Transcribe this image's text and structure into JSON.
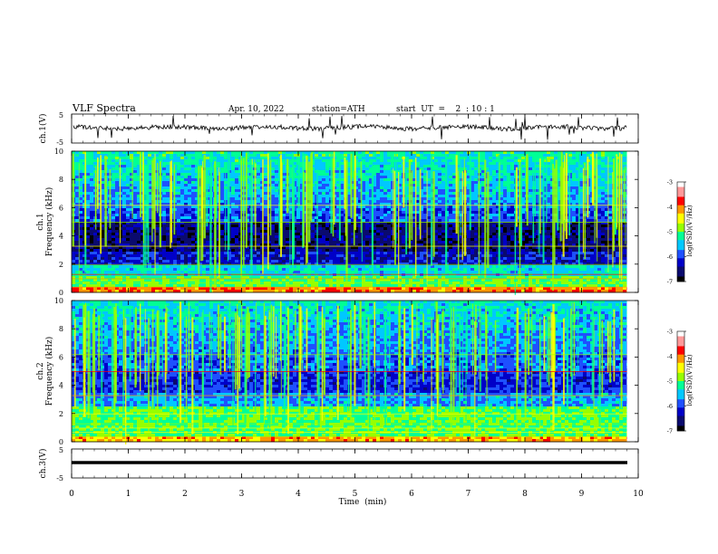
{
  "header": {
    "title": "VLF  Spectra",
    "date": "Apr. 10, 2022",
    "station": "station=ATH",
    "start_ut": "start  UT  =    2  : 10 : 1"
  },
  "chart_data": [
    {
      "type": "line",
      "panel": "ch1-waveform",
      "ylabel": "ch.1(V)",
      "yticks": [
        "5",
        "-5"
      ],
      "ylim": [
        -5,
        5
      ],
      "xlim": [
        0,
        10
      ],
      "series": [
        {
          "values_note": "noise waveform near 0 V with spikes",
          "color": "#000000"
        }
      ]
    },
    {
      "type": "heatmap",
      "panel": "ch1-spectrogram",
      "ylabel": "ch.1\nFrequency  (kHz)",
      "ylabel_line1": "ch.1",
      "ylabel_line2": "Frequency  (kHz)",
      "yticks": [
        "0",
        "2",
        "4",
        "6",
        "8",
        "10"
      ],
      "ylim": [
        0,
        10
      ],
      "xlim": [
        0,
        9.8
      ],
      "colorbar": {
        "label": "log(PSD)(V²/Hz)",
        "ticks": [
          "-3",
          "-4",
          "-5",
          "-6",
          "-7"
        ],
        "range": [
          -7,
          -3
        ]
      }
    },
    {
      "type": "heatmap",
      "panel": "ch2-spectrogram",
      "ylabel_line1": "ch.2",
      "ylabel_line2": "Frequency  (kHz)",
      "yticks": [
        "0",
        "2",
        "4",
        "6",
        "8",
        "10"
      ],
      "ylim": [
        0,
        10
      ],
      "xlim": [
        0,
        9.8
      ],
      "colorbar": {
        "label": "log(PSD)(V²/Hz)",
        "ticks": [
          "-3",
          "-4",
          "-5",
          "-6",
          "-7"
        ],
        "range": [
          -7,
          -3
        ]
      }
    },
    {
      "type": "line",
      "panel": "ch3-waveform",
      "ylabel": "ch.3(V)",
      "yticks": [
        "5",
        "-5"
      ],
      "ylim": [
        -5,
        5
      ],
      "xlim": [
        0,
        10
      ],
      "series": [
        {
          "values_note": "flat line near -1 V",
          "color": "#000000"
        }
      ]
    }
  ],
  "x_axis": {
    "label": "Time  (min)",
    "ticks": [
      "0",
      "1",
      "2",
      "3",
      "4",
      "5",
      "6",
      "7",
      "8",
      "9",
      "10"
    ],
    "range": [
      0,
      10
    ]
  },
  "colors": {
    "colormap": [
      "#000000",
      "#0a0a6e",
      "#0000c8",
      "#1e50ff",
      "#00c8ff",
      "#00ff96",
      "#96ff00",
      "#ffff00",
      "#ff9600",
      "#ff0000",
      "#ff9999",
      "#ffffff"
    ]
  }
}
